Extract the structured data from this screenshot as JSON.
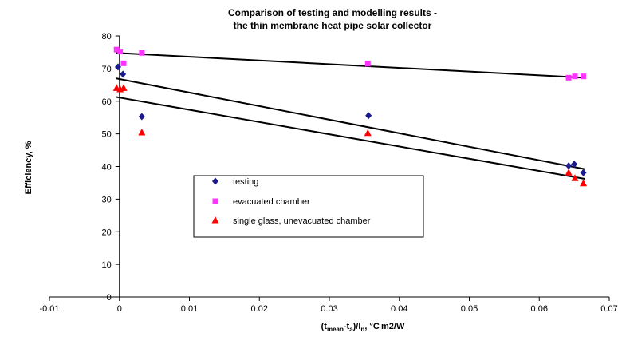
{
  "chart_data": {
    "type": "scatter",
    "title_lines": [
      "Comparison of testing and modelling results -",
      "the thin membrane heat pipe solar collector"
    ],
    "xlabel": {
      "base1": "(t",
      "sub1": "mean",
      "base2": "-t",
      "sub2": "a",
      "base3": ")/I",
      "sub3": "n",
      "base4": ", °C",
      "sub4": ".",
      "base5": "m2/W"
    },
    "ylabel": "Efficiency, %",
    "xlim": [
      -0.01,
      0.07
    ],
    "ylim": [
      0,
      80
    ],
    "x_ticks": [
      -0.01,
      0,
      0.01,
      0.02,
      0.03,
      0.04,
      0.05,
      0.06,
      0.07
    ],
    "x_tick_labels": [
      "-0.01",
      "0",
      "0.01",
      "0.02",
      "0.03",
      "0.04",
      "0.05",
      "0.06",
      "0.07"
    ],
    "y_ticks": [
      0,
      10,
      20,
      30,
      40,
      50,
      60,
      70,
      80
    ],
    "y_tick_labels": [
      "0",
      "10",
      "20",
      "30",
      "40",
      "50",
      "60",
      "70",
      "80"
    ],
    "grid": false,
    "legend_position": "center-left",
    "series": [
      {
        "name": "testing",
        "marker": "diamond",
        "color": "#1a1a8c",
        "points": [
          {
            "x": -0.0002,
            "y": 70.5
          },
          {
            "x": 0.0005,
            "y": 68.3
          },
          {
            "x": 0.0032,
            "y": 55.3
          },
          {
            "x": 0.0356,
            "y": 55.6
          },
          {
            "x": 0.0642,
            "y": 40.2
          },
          {
            "x": 0.065,
            "y": 40.7
          },
          {
            "x": 0.0663,
            "y": 38.1
          }
        ]
      },
      {
        "name": "evacuated chamber",
        "marker": "square",
        "color": "#ff33ff",
        "points": [
          {
            "x": -0.0004,
            "y": 75.8
          },
          {
            "x": 0.0001,
            "y": 75.2
          },
          {
            "x": 0.0006,
            "y": 71.6
          },
          {
            "x": 0.0032,
            "y": 74.8
          },
          {
            "x": 0.0355,
            "y": 71.5
          },
          {
            "x": 0.0642,
            "y": 67.2
          },
          {
            "x": 0.0651,
            "y": 67.6
          },
          {
            "x": 0.0663,
            "y": 67.6
          }
        ]
      },
      {
        "name": "single glass, unevacuated chamber",
        "marker": "triangle",
        "color": "#ff0000",
        "points": [
          {
            "x": -0.0004,
            "y": 64.0
          },
          {
            "x": 0.0001,
            "y": 63.6
          },
          {
            "x": 0.0006,
            "y": 64.0
          },
          {
            "x": 0.0032,
            "y": 50.4
          },
          {
            "x": 0.0355,
            "y": 50.2
          },
          {
            "x": 0.0642,
            "y": 38.1
          },
          {
            "x": 0.0651,
            "y": 36.4
          },
          {
            "x": 0.0663,
            "y": 34.8
          }
        ]
      }
    ],
    "trend_lines": [
      {
        "series": "evacuated chamber",
        "x1": -0.0005,
        "y1": 74.8,
        "x2": 0.0665,
        "y2": 67.2,
        "color": "#000000"
      },
      {
        "series": "testing",
        "x1": -0.0005,
        "y1": 67.0,
        "x2": 0.0665,
        "y2": 39.2,
        "color": "#000000"
      },
      {
        "series": "single glass, unevacuated chamber",
        "x1": -0.0005,
        "y1": 61.3,
        "x2": 0.0665,
        "y2": 36.2,
        "color": "#000000"
      }
    ]
  }
}
